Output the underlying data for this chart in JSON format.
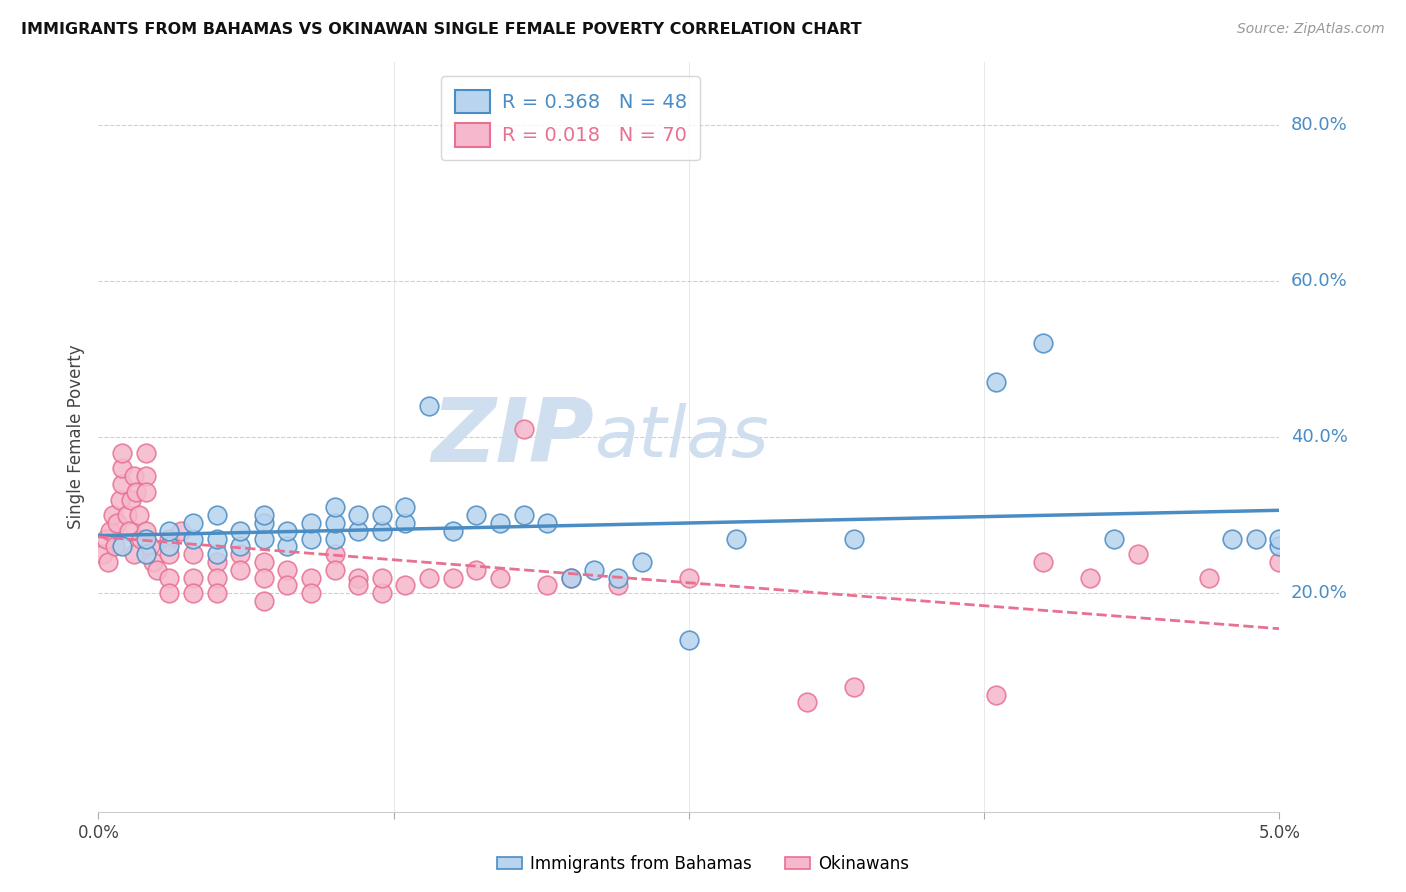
{
  "title": "IMMIGRANTS FROM BAHAMAS VS OKINAWAN SINGLE FEMALE POVERTY CORRELATION CHART",
  "source": "Source: ZipAtlas.com",
  "ylabel": "Single Female Poverty",
  "ytick_labels": [
    "20.0%",
    "40.0%",
    "60.0%",
    "80.0%"
  ],
  "ytick_values": [
    0.2,
    0.4,
    0.6,
    0.8
  ],
  "xlim": [
    0.0,
    0.05
  ],
  "ylim": [
    -0.08,
    0.88
  ],
  "xlabel_ticks": [
    0.0,
    0.0125,
    0.025,
    0.0375,
    0.05
  ],
  "xlabel_labels": [
    "0.0%",
    "",
    "",
    "",
    "5.0%"
  ],
  "legend1_r": "0.368",
  "legend1_n": "48",
  "legend2_r": "0.018",
  "legend2_n": "70",
  "legend1_label": "Immigrants from Bahamas",
  "legend2_label": "Okinawans",
  "blue_color": "#b8d4ee",
  "pink_color": "#f5b8cc",
  "trendline_blue": "#4a8cc4",
  "trendline_pink": "#e87090",
  "watermark": "ZIPatlas",
  "watermark_color": "#d0dff0",
  "blue_scatter_x": [
    0.001,
    0.002,
    0.002,
    0.003,
    0.003,
    0.004,
    0.004,
    0.005,
    0.005,
    0.005,
    0.006,
    0.006,
    0.007,
    0.007,
    0.007,
    0.008,
    0.008,
    0.009,
    0.009,
    0.01,
    0.01,
    0.01,
    0.011,
    0.011,
    0.012,
    0.012,
    0.013,
    0.013,
    0.014,
    0.015,
    0.016,
    0.017,
    0.018,
    0.019,
    0.02,
    0.021,
    0.022,
    0.023,
    0.025,
    0.027,
    0.032,
    0.038,
    0.04,
    0.043,
    0.048,
    0.049,
    0.05,
    0.05
  ],
  "blue_scatter_y": [
    0.26,
    0.25,
    0.27,
    0.26,
    0.28,
    0.27,
    0.29,
    0.25,
    0.27,
    0.3,
    0.26,
    0.28,
    0.27,
    0.29,
    0.3,
    0.26,
    0.28,
    0.27,
    0.29,
    0.27,
    0.29,
    0.31,
    0.28,
    0.3,
    0.28,
    0.3,
    0.29,
    0.31,
    0.44,
    0.28,
    0.3,
    0.29,
    0.3,
    0.29,
    0.22,
    0.23,
    0.22,
    0.24,
    0.14,
    0.27,
    0.27,
    0.47,
    0.52,
    0.27,
    0.27,
    0.27,
    0.26,
    0.27
  ],
  "pink_scatter_x": [
    0.0002,
    0.0003,
    0.0004,
    0.0005,
    0.0006,
    0.0007,
    0.0008,
    0.0009,
    0.001,
    0.001,
    0.001,
    0.0012,
    0.0013,
    0.0014,
    0.0015,
    0.0015,
    0.0016,
    0.0017,
    0.0018,
    0.002,
    0.002,
    0.002,
    0.002,
    0.0022,
    0.0023,
    0.0025,
    0.003,
    0.003,
    0.003,
    0.003,
    0.0035,
    0.004,
    0.004,
    0.004,
    0.005,
    0.005,
    0.005,
    0.006,
    0.006,
    0.007,
    0.007,
    0.007,
    0.008,
    0.008,
    0.009,
    0.009,
    0.01,
    0.01,
    0.011,
    0.011,
    0.012,
    0.012,
    0.013,
    0.014,
    0.015,
    0.016,
    0.017,
    0.018,
    0.019,
    0.02,
    0.022,
    0.025,
    0.03,
    0.032,
    0.038,
    0.04,
    0.042,
    0.044,
    0.047,
    0.05
  ],
  "pink_scatter_y": [
    0.25,
    0.27,
    0.24,
    0.28,
    0.3,
    0.26,
    0.29,
    0.32,
    0.34,
    0.36,
    0.38,
    0.3,
    0.28,
    0.32,
    0.35,
    0.25,
    0.33,
    0.3,
    0.27,
    0.35,
    0.38,
    0.33,
    0.28,
    0.26,
    0.24,
    0.23,
    0.27,
    0.25,
    0.22,
    0.2,
    0.28,
    0.22,
    0.25,
    0.2,
    0.24,
    0.22,
    0.2,
    0.25,
    0.23,
    0.24,
    0.22,
    0.19,
    0.23,
    0.21,
    0.22,
    0.2,
    0.25,
    0.23,
    0.22,
    0.21,
    0.2,
    0.22,
    0.21,
    0.22,
    0.22,
    0.23,
    0.22,
    0.41,
    0.21,
    0.22,
    0.21,
    0.22,
    0.06,
    0.08,
    0.07,
    0.24,
    0.22,
    0.25,
    0.22,
    0.24
  ]
}
